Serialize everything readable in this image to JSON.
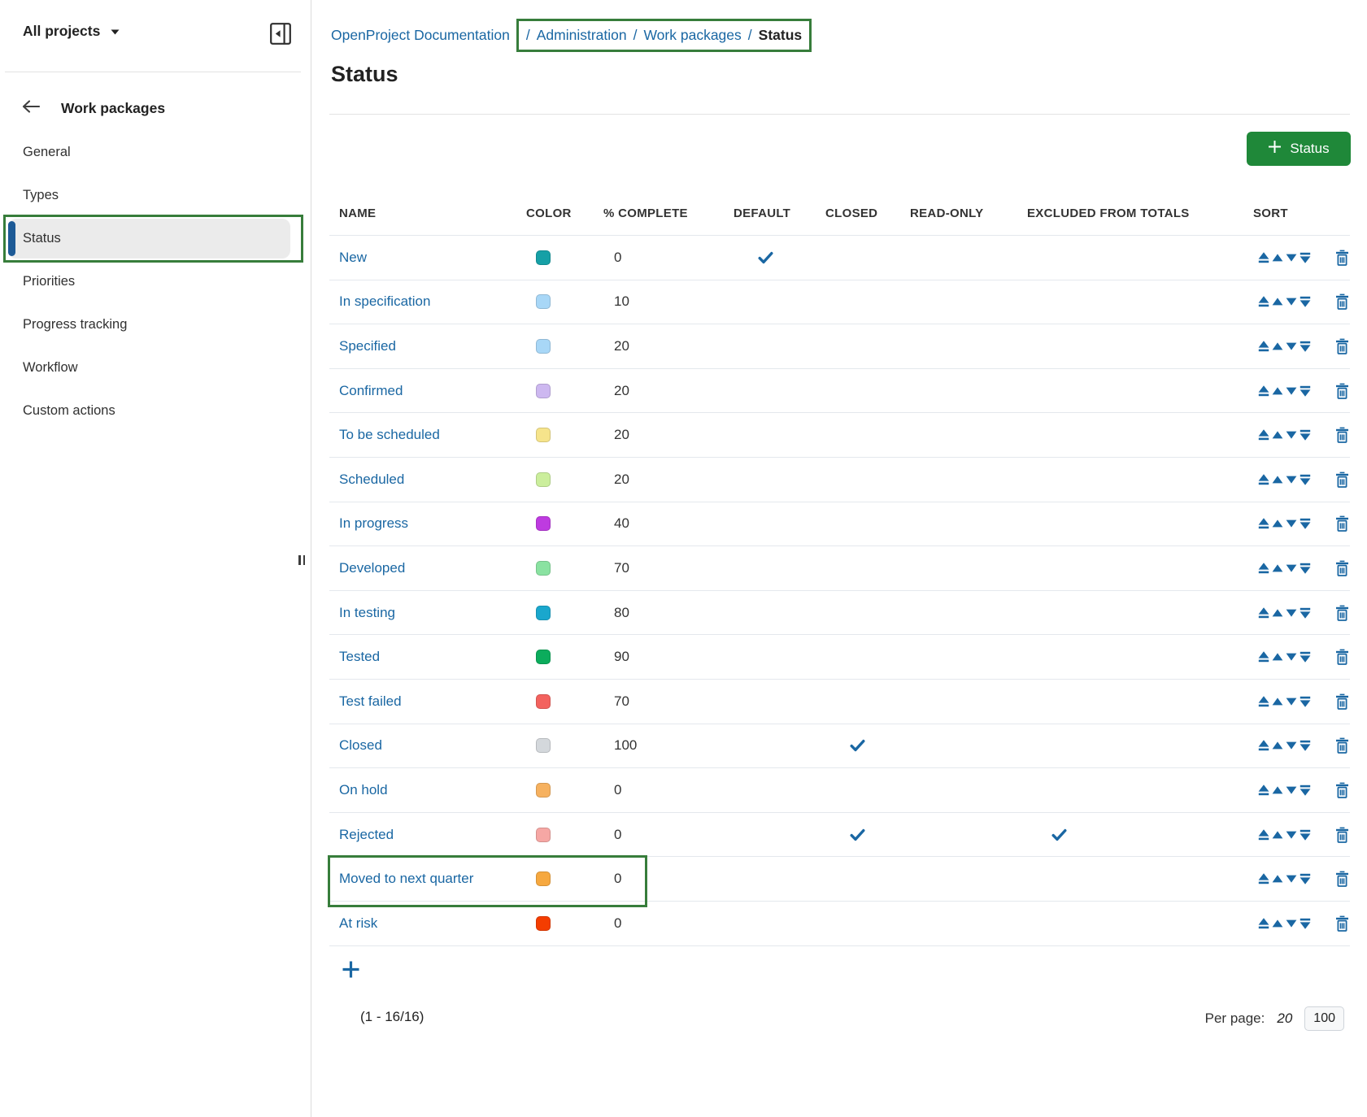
{
  "sidebar": {
    "project_selector": "All projects",
    "back_label": "Work packages",
    "items": [
      {
        "label": "General",
        "active": false
      },
      {
        "label": "Types",
        "active": false
      },
      {
        "label": "Status",
        "active": true
      },
      {
        "label": "Priorities",
        "active": false
      },
      {
        "label": "Progress tracking",
        "active": false
      },
      {
        "label": "Workflow",
        "active": false
      },
      {
        "label": "Custom actions",
        "active": false
      }
    ]
  },
  "breadcrumb": {
    "separator": "/",
    "items": [
      {
        "label": "OpenProject Documentation",
        "link": true,
        "highlighted": false
      },
      {
        "label": "Administration",
        "link": true,
        "highlighted": true
      },
      {
        "label": "Work packages",
        "link": true,
        "highlighted": true
      },
      {
        "label": "Status",
        "link": false,
        "highlighted": true
      }
    ]
  },
  "page": {
    "title": "Status"
  },
  "toolbar": {
    "add_status_label": "Status"
  },
  "table": {
    "columns": [
      "NAME",
      "COLOR",
      "% COMPLETE",
      "DEFAULT",
      "CLOSED",
      "READ-ONLY",
      "EXCLUDED FROM TOTALS",
      "SORT"
    ],
    "rows": [
      {
        "name": "New",
        "color": "#16A0A6",
        "percent": "0",
        "default": true,
        "closed": false,
        "read_only": false,
        "excluded_from_totals": false,
        "highlighted": false
      },
      {
        "name": "In specification",
        "color": "#A8D7F7",
        "percent": "10",
        "default": false,
        "closed": false,
        "read_only": false,
        "excluded_from_totals": false,
        "highlighted": false
      },
      {
        "name": "Specified",
        "color": "#A8D7F7",
        "percent": "20",
        "default": false,
        "closed": false,
        "read_only": false,
        "excluded_from_totals": false,
        "highlighted": false
      },
      {
        "name": "Confirmed",
        "color": "#CDB8F0",
        "percent": "20",
        "default": false,
        "closed": false,
        "read_only": false,
        "excluded_from_totals": false,
        "highlighted": false
      },
      {
        "name": "To be scheduled",
        "color": "#F6E48B",
        "percent": "20",
        "default": false,
        "closed": false,
        "read_only": false,
        "excluded_from_totals": false,
        "highlighted": false
      },
      {
        "name": "Scheduled",
        "color": "#CBEE9C",
        "percent": "20",
        "default": false,
        "closed": false,
        "read_only": false,
        "excluded_from_totals": false,
        "highlighted": false
      },
      {
        "name": "In progress",
        "color": "#BE3BE0",
        "percent": "40",
        "default": false,
        "closed": false,
        "read_only": false,
        "excluded_from_totals": false,
        "highlighted": false
      },
      {
        "name": "Developed",
        "color": "#8AE2A1",
        "percent": "70",
        "default": false,
        "closed": false,
        "read_only": false,
        "excluded_from_totals": false,
        "highlighted": false
      },
      {
        "name": "In testing",
        "color": "#1AA7CD",
        "percent": "80",
        "default": false,
        "closed": false,
        "read_only": false,
        "excluded_from_totals": false,
        "highlighted": false
      },
      {
        "name": "Tested",
        "color": "#0CAC5C",
        "percent": "90",
        "default": false,
        "closed": false,
        "read_only": false,
        "excluded_from_totals": false,
        "highlighted": false
      },
      {
        "name": "Test failed",
        "color": "#F3625E",
        "percent": "70",
        "default": false,
        "closed": false,
        "read_only": false,
        "excluded_from_totals": false,
        "highlighted": false
      },
      {
        "name": "Closed",
        "color": "#D4D8DC",
        "percent": "100",
        "default": false,
        "closed": true,
        "read_only": false,
        "excluded_from_totals": false,
        "highlighted": false
      },
      {
        "name": "On hold",
        "color": "#F6B15F",
        "percent": "0",
        "default": false,
        "closed": false,
        "read_only": false,
        "excluded_from_totals": false,
        "highlighted": false
      },
      {
        "name": "Rejected",
        "color": "#F6A7A4",
        "percent": "0",
        "default": false,
        "closed": true,
        "read_only": false,
        "excluded_from_totals": true,
        "highlighted": false
      },
      {
        "name": "Moved to next quarter",
        "color": "#F6A83F",
        "percent": "0",
        "default": false,
        "closed": false,
        "read_only": false,
        "excluded_from_totals": false,
        "highlighted": true
      },
      {
        "name": "At risk",
        "color": "#F43D00",
        "percent": "0",
        "default": false,
        "closed": false,
        "read_only": false,
        "excluded_from_totals": false,
        "highlighted": false
      }
    ]
  },
  "footer": {
    "range": "(1 - 16/16)",
    "per_page_label": "Per page:",
    "per_page_options": [
      {
        "label": "20",
        "current": true
      },
      {
        "label": "100",
        "current": false
      }
    ]
  },
  "colors": {
    "link_blue": "#1A67A3",
    "button_green": "#1F8839",
    "annotation_green": "#377D3B",
    "active_item_accent": "#1d5a96"
  }
}
